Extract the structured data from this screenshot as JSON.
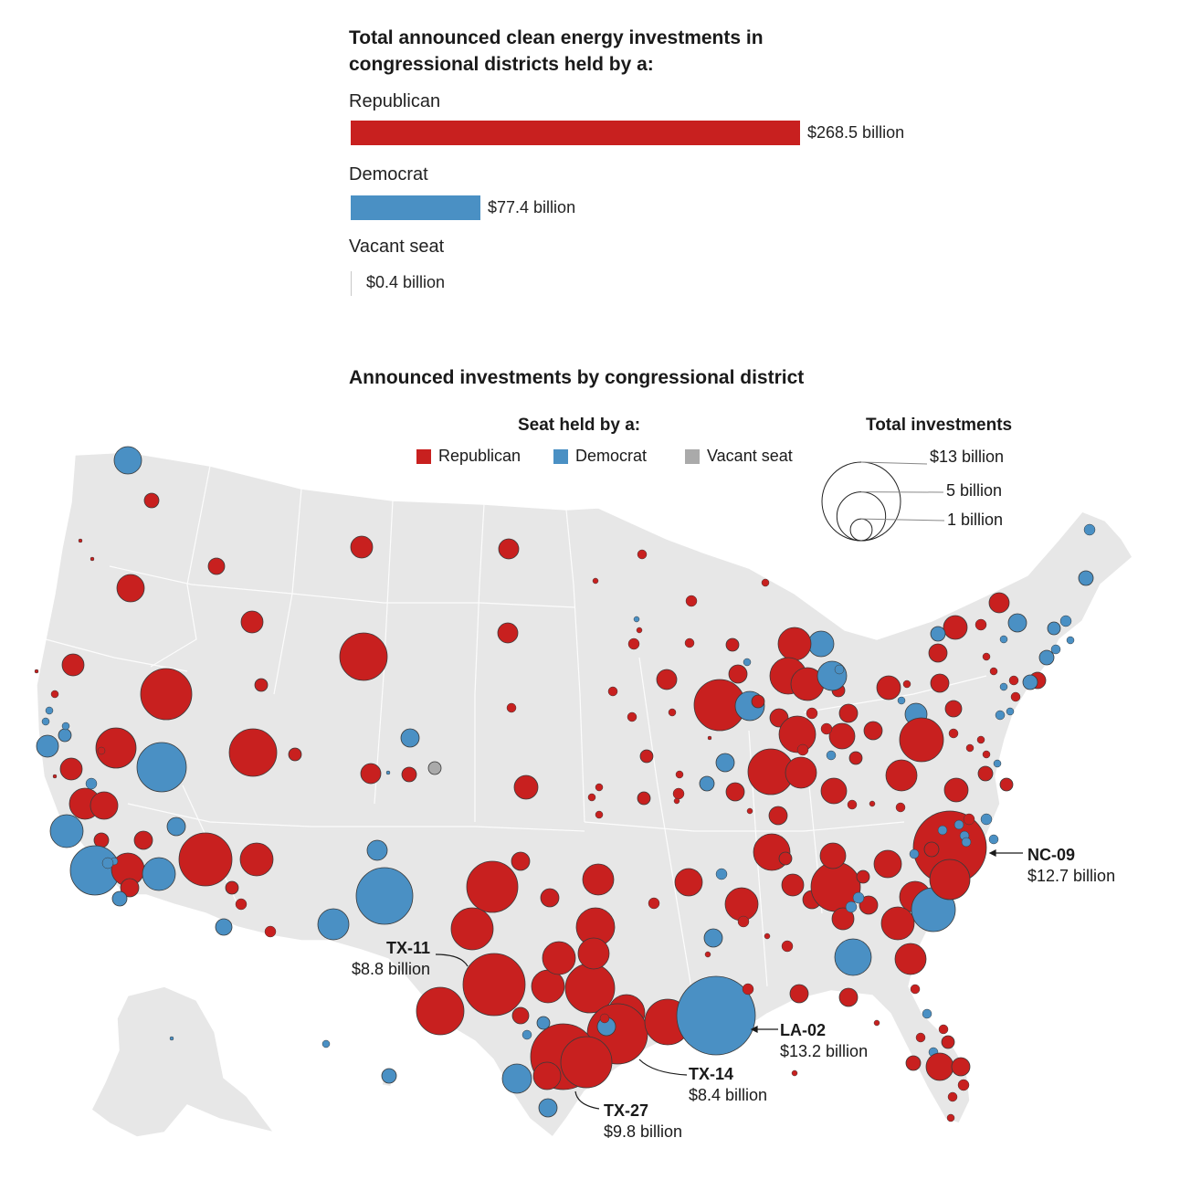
{
  "bar_chart": {
    "title": "Total announced clean energy investments in congressional districts held by a:",
    "items": [
      {
        "label": "Republican",
        "value": 268.5,
        "value_label": "$268.5 billion",
        "color": "#c8201f"
      },
      {
        "label": "Democrat",
        "value": 77.4,
        "value_label": "$77.4 billion",
        "color": "#4a90c4"
      },
      {
        "label": "Vacant seat",
        "value": 0.4,
        "value_label": "$0.4 billion",
        "color": "#c8c8c8"
      }
    ]
  },
  "map": {
    "title": "Announced investments by congressional district",
    "legend": {
      "title": "Seat held by a:",
      "items": [
        {
          "label": "Republican",
          "color": "#c8201f"
        },
        {
          "label": "Democrat",
          "color": "#4a90c4"
        },
        {
          "label": "Vacant seat",
          "color": "#aaaaaa"
        }
      ]
    },
    "size_legend": {
      "title": "Total investments",
      "items": [
        {
          "label": "$13 billion",
          "value": 13
        },
        {
          "label": "5 billion",
          "value": 5
        },
        {
          "label": "1 billion",
          "value": 1
        }
      ]
    },
    "callouts": [
      {
        "district": "NC-09",
        "value": 12.7,
        "label": "$12.7 billion"
      },
      {
        "district": "TX-11",
        "value": 8.8,
        "label": "$8.8 billion"
      },
      {
        "district": "LA-02",
        "value": 13.2,
        "label": "$13.2 billion"
      },
      {
        "district": "TX-14",
        "value": 8.4,
        "label": "$8.4 billion"
      },
      {
        "district": "TX-27",
        "value": 9.8,
        "label": "$9.8 billion"
      }
    ]
  }
}
